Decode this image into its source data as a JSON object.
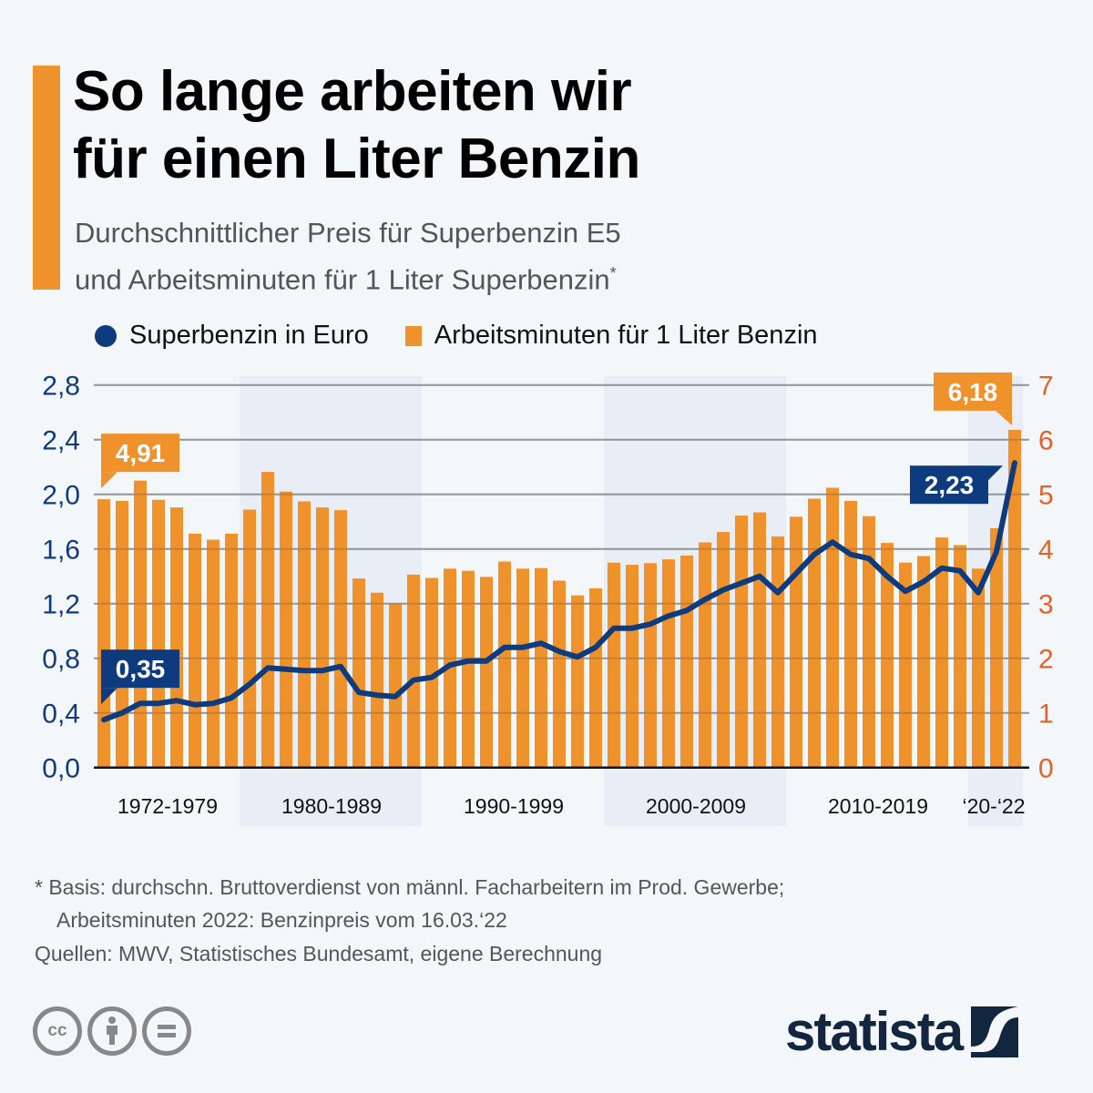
{
  "header": {
    "title_line1": "So lange arbeiten wir",
    "title_line2": "für einen Liter Benzin",
    "subtitle_line1": "Durchschnittlicher Preis für Superbenzin E5",
    "subtitle_line2": "und Arbeitsminuten für 1 Liter Superbenzin",
    "subtitle_marker": "*"
  },
  "colors": {
    "accent": "#f0922b",
    "line": "#0d3b7e",
    "bar": "#f0922b",
    "right_axis": "#e2622a",
    "band": "#e9eef6",
    "background": "#f4f7fa"
  },
  "chart_data": {
    "type": "bar+line",
    "title": "So lange arbeiten wir für einen Liter Benzin",
    "x": [
      1972,
      1973,
      1974,
      1975,
      1976,
      1977,
      1978,
      1979,
      1980,
      1981,
      1982,
      1983,
      1984,
      1985,
      1986,
      1987,
      1988,
      1989,
      1990,
      1991,
      1992,
      1993,
      1994,
      1995,
      1996,
      1997,
      1998,
      1999,
      2000,
      2001,
      2002,
      2003,
      2004,
      2005,
      2006,
      2007,
      2008,
      2009,
      2010,
      2011,
      2012,
      2013,
      2014,
      2015,
      2016,
      2017,
      2018,
      2019,
      2020,
      2021,
      2022
    ],
    "series": [
      {
        "name": "Superbenzin in Euro",
        "type": "line",
        "axis": "left",
        "values": [
          0.35,
          0.4,
          0.47,
          0.47,
          0.49,
          0.46,
          0.47,
          0.51,
          0.61,
          0.73,
          0.72,
          0.71,
          0.71,
          0.74,
          0.55,
          0.53,
          0.52,
          0.64,
          0.66,
          0.75,
          0.78,
          0.78,
          0.88,
          0.88,
          0.91,
          0.85,
          0.81,
          0.88,
          1.02,
          1.02,
          1.05,
          1.11,
          1.15,
          1.23,
          1.3,
          1.35,
          1.4,
          1.28,
          1.42,
          1.56,
          1.65,
          1.56,
          1.53,
          1.4,
          1.29,
          1.36,
          1.46,
          1.44,
          1.28,
          1.58,
          2.23
        ]
      },
      {
        "name": "Arbeitsminuten für 1 Liter Benzin",
        "type": "bar",
        "axis": "right",
        "values": [
          4.91,
          4.88,
          5.25,
          4.9,
          4.76,
          4.28,
          4.17,
          4.28,
          4.72,
          5.41,
          5.05,
          4.87,
          4.76,
          4.71,
          3.46,
          3.2,
          3.0,
          3.53,
          3.47,
          3.64,
          3.6,
          3.49,
          3.77,
          3.64,
          3.65,
          3.42,
          3.15,
          3.28,
          3.75,
          3.71,
          3.74,
          3.81,
          3.88,
          4.12,
          4.31,
          4.61,
          4.67,
          4.23,
          4.59,
          4.92,
          5.12,
          4.88,
          4.6,
          4.11,
          3.75,
          3.87,
          4.21,
          4.07,
          3.64,
          4.38,
          6.18
        ]
      }
    ],
    "left_axis": {
      "ticks": [
        "0,0",
        "0,4",
        "0,8",
        "1,2",
        "1,6",
        "2,0",
        "2,4",
        "2,8"
      ],
      "range": [
        0,
        2.8
      ]
    },
    "right_axis": {
      "ticks": [
        "0",
        "1",
        "2",
        "3",
        "4",
        "5",
        "6",
        "7"
      ],
      "range": [
        0,
        7
      ]
    },
    "x_groups": [
      {
        "label": "1972-1979",
        "from": 1972,
        "to": 1979,
        "shaded": false
      },
      {
        "label": "1980-1989",
        "from": 1980,
        "to": 1989,
        "shaded": true
      },
      {
        "label": "1990-1999",
        "from": 1990,
        "to": 1999,
        "shaded": false
      },
      {
        "label": "2000-2009",
        "from": 2000,
        "to": 2009,
        "shaded": true
      },
      {
        "label": "2010-2019",
        "from": 2010,
        "to": 2019,
        "shaded": false
      },
      {
        "label": "‘20-‘22",
        "from": 2020,
        "to": 2022,
        "shaded": true
      }
    ],
    "annotations": [
      {
        "series": "bar",
        "year": 1972,
        "text": "4,91"
      },
      {
        "series": "line",
        "year": 1972,
        "text": "0,35"
      },
      {
        "series": "bar",
        "year": 2022,
        "text": "6,18"
      },
      {
        "series": "line",
        "year": 2022,
        "text": "2,23"
      }
    ],
    "legend": [
      "Superbenzin in Euro",
      "Arbeitsminuten für 1 Liter Benzin"
    ],
    "legend_position": "top-left",
    "grid": true
  },
  "footer": {
    "note_line1": "* Basis: durchschn. Bruttoverdienst von männl. Facharbeitern im Prod. Gewerbe;",
    "note_line2": "Arbeitsminuten 2022: Benzinpreis vom 16.03.‘22",
    "sources": "Quellen: MWV, Statistisches Bundesamt, eigene Berechnung",
    "cc_icons": [
      "cc-icon",
      "by-icon",
      "nd-icon"
    ],
    "cc_label": "cc",
    "logo_text": "statista"
  }
}
